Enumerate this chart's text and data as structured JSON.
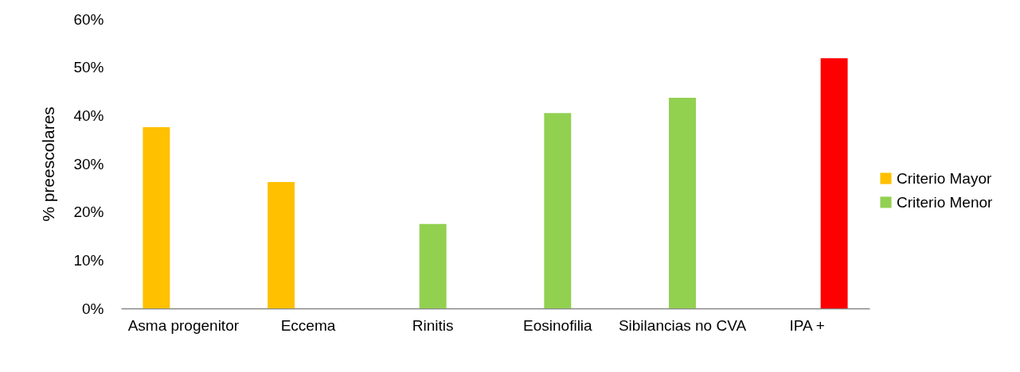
{
  "chart_data": {
    "type": "bar",
    "ylabel": "%  preescolares",
    "categories": [
      "Asma progenitor",
      "Eccema",
      "Rinitis",
      "Eosinofilia",
      "Sibilancias no CVA",
      "IPA +"
    ],
    "series": [
      {
        "name": "Criterio Mayor",
        "color": "#ffc000",
        "values": [
          37.6,
          26.2,
          null,
          null,
          null,
          null
        ]
      },
      {
        "name": "Criterio Menor",
        "color": "#92d050",
        "values": [
          null,
          null,
          17.5,
          40.5,
          43.7,
          null
        ]
      },
      {
        "color": "#ff0000",
        "values": [
          null,
          null,
          null,
          null,
          null,
          51.9
        ]
      }
    ],
    "ylim": [
      0,
      60
    ],
    "yticks": [
      {
        "value": 0,
        "label": "0%"
      },
      {
        "value": 10,
        "label": "10%"
      },
      {
        "value": 20,
        "label": "20%"
      },
      {
        "value": 30,
        "label": "30%"
      },
      {
        "value": 40,
        "label": "40%"
      },
      {
        "value": 50,
        "label": "50%"
      },
      {
        "value": 60,
        "label": "60%"
      }
    ],
    "grid": false,
    "legend": "right"
  }
}
